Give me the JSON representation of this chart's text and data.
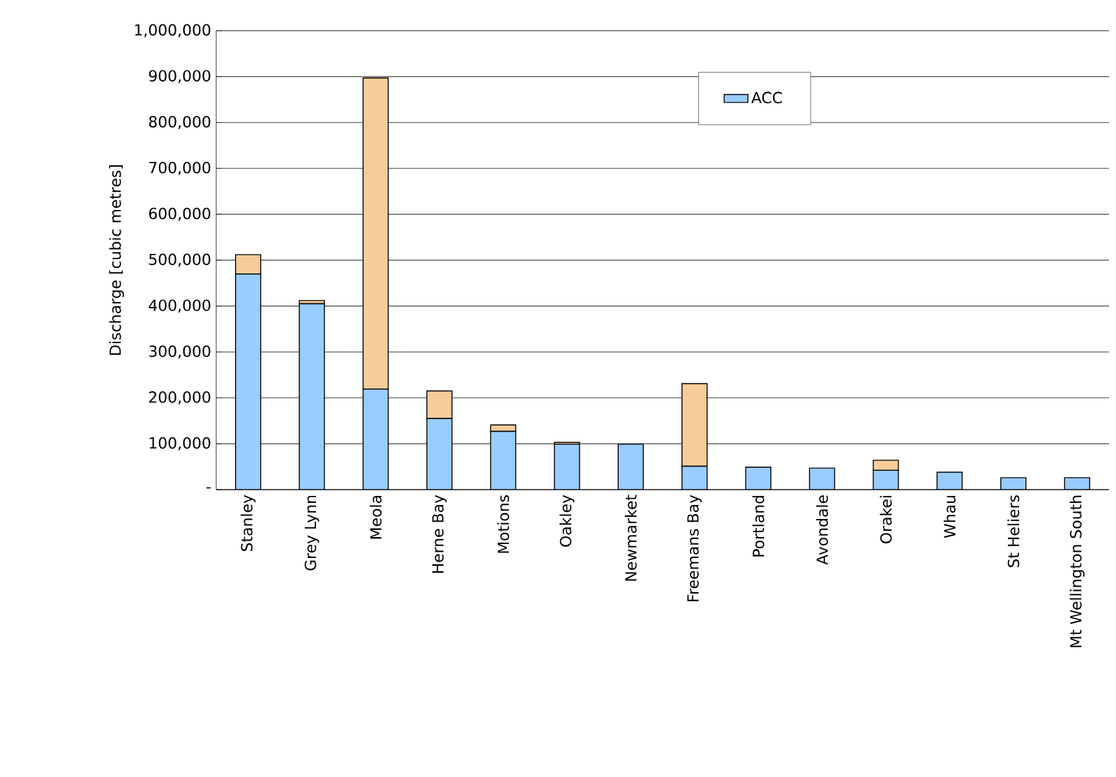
{
  "chart_data": {
    "type": "bar",
    "stacked": true,
    "ylabel": "Discharge [cubic metres]",
    "categories": [
      "Stanley",
      "Grey Lynn",
      "Meola",
      "Herne Bay",
      "Motions",
      "Oakley",
      "Newmarket",
      "Freemans Bay",
      "Portland",
      "Avondale",
      "Orakei",
      "Whau",
      "St Heliers",
      "Mt Wellington South"
    ],
    "series": [
      {
        "name": "ACC",
        "color": "#99ccff",
        "values": [
          470000,
          405000,
          219000,
          155000,
          127000,
          99000,
          99000,
          51000,
          49000,
          47000,
          42000,
          38000,
          26000,
          26000
        ]
      },
      {
        "color": "#f8cc99",
        "values": [
          42000,
          7000,
          678000,
          60000,
          14000,
          4000,
          0,
          180000,
          null,
          0,
          22000,
          0,
          0,
          0
        ]
      }
    ],
    "ylim": [
      0,
      1000000
    ],
    "yticks": [
      {
        "value": 0,
        "label": "-"
      },
      {
        "value": 100000,
        "label": "100,000"
      },
      {
        "value": 200000,
        "label": "200,000"
      },
      {
        "value": 300000,
        "label": "300,000"
      },
      {
        "value": 400000,
        "label": "400,000"
      },
      {
        "value": 500000,
        "label": "500,000"
      },
      {
        "value": 600000,
        "label": "600,000"
      },
      {
        "value": 700000,
        "label": "700,000"
      },
      {
        "value": 800000,
        "label": "800,000"
      },
      {
        "value": 900000,
        "label": "900,000"
      },
      {
        "value": 1000000,
        "label": "1,000,000"
      }
    ],
    "grid": "y",
    "legend": "top right"
  }
}
